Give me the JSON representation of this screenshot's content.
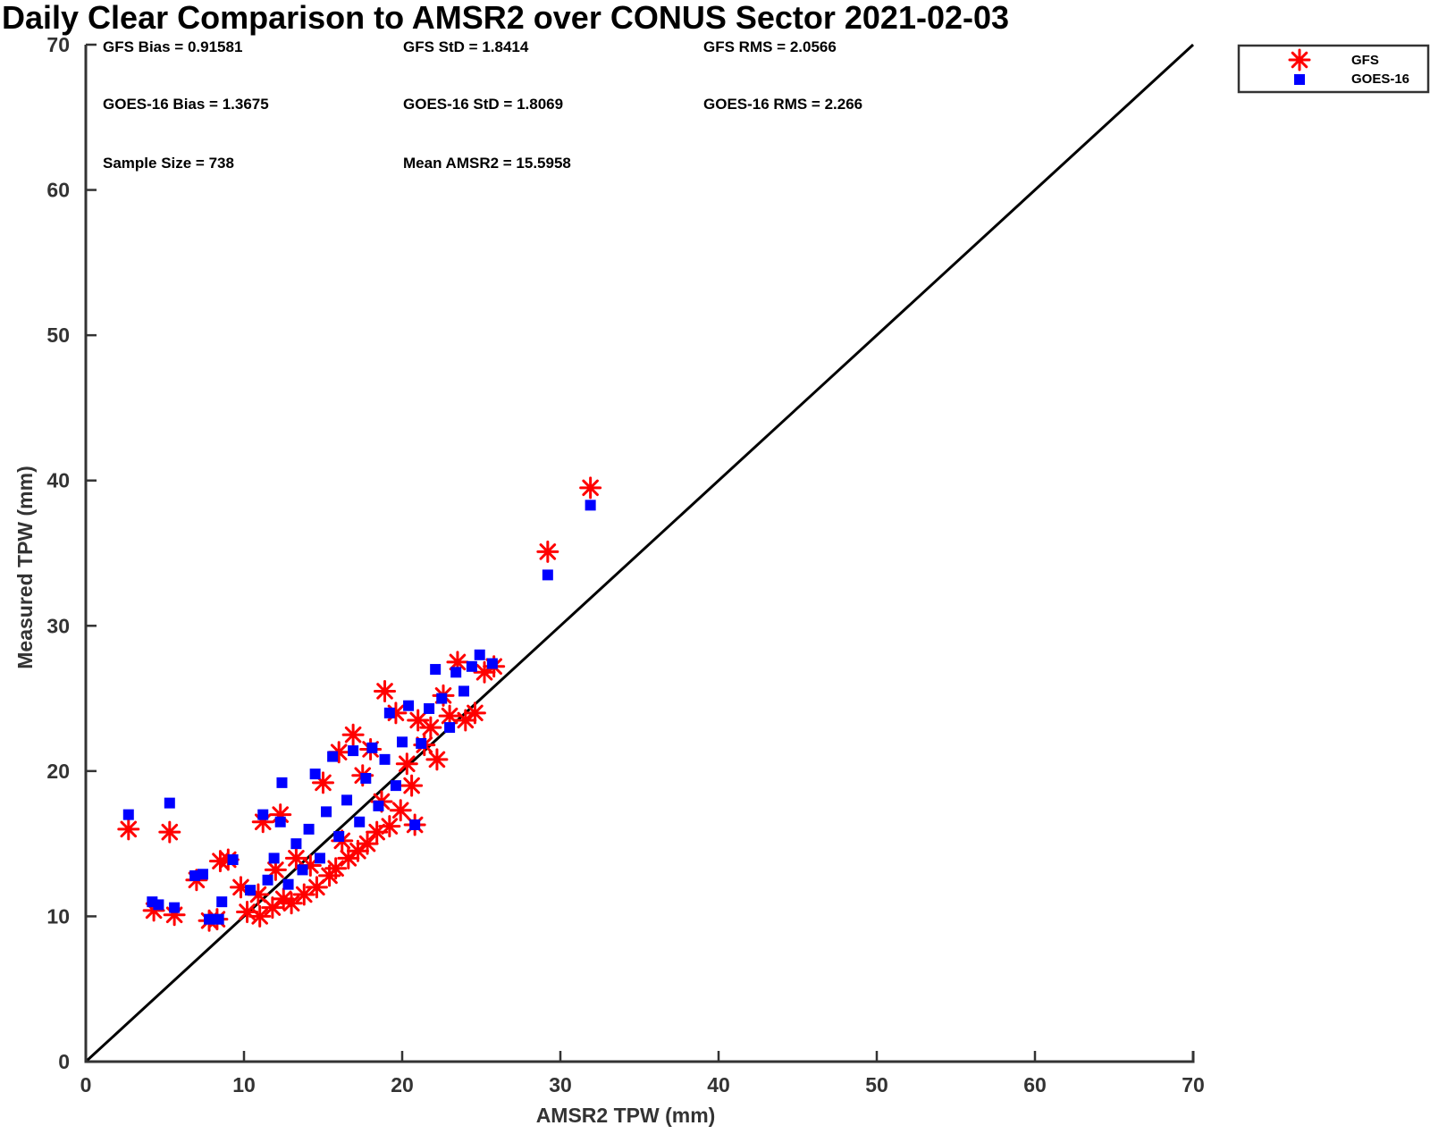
{
  "chart_data": {
    "type": "scatter",
    "title": "Daily Clear Comparison to AMSR2 over CONUS Sector 2021-02-03",
    "xlabel": "AMSR2 TPW (mm)",
    "ylabel": "Measured TPW (mm)",
    "xlim": [
      0,
      70
    ],
    "ylim": [
      0,
      70
    ],
    "xticks": [
      "0",
      "10",
      "20",
      "30",
      "40",
      "50",
      "60",
      "70"
    ],
    "yticks": [
      "0",
      "10",
      "20",
      "30",
      "40",
      "50",
      "60",
      "70"
    ],
    "grid": false,
    "legend_position": "outside-top-right",
    "reference_line": {
      "from": [
        0,
        0
      ],
      "to": [
        70,
        70
      ],
      "color": "#000000"
    },
    "stats": {
      "gfs_bias": "GFS Bias = 0.91581",
      "gfs_std": "GFS StD = 1.8414",
      "gfs_rms": "GFS RMS = 2.0566",
      "goes_bias": "GOES-16 Bias = 1.3675",
      "goes_std": "GOES-16 StD = 1.8069",
      "goes_rms": "GOES-16 RMS = 2.266",
      "sample_size": "Sample Size = 738",
      "mean_amsr2": "Mean AMSR2 = 15.5958"
    },
    "series": [
      {
        "name": "GFS",
        "marker": "asterisk",
        "color": "#ff0000",
        "points": [
          [
            2.7,
            16.0
          ],
          [
            5.3,
            15.8
          ],
          [
            4.3,
            10.4
          ],
          [
            5.6,
            10.1
          ],
          [
            7.0,
            12.5
          ],
          [
            7.8,
            9.7
          ],
          [
            8.3,
            9.8
          ],
          [
            8.5,
            13.8
          ],
          [
            9.0,
            13.9
          ],
          [
            9.8,
            12.0
          ],
          [
            10.2,
            10.3
          ],
          [
            11.0,
            10.0
          ],
          [
            11.2,
            16.5
          ],
          [
            10.9,
            11.5
          ],
          [
            11.8,
            10.6
          ],
          [
            12.0,
            13.2
          ],
          [
            12.3,
            17.0
          ],
          [
            12.5,
            11.2
          ],
          [
            13.0,
            10.9
          ],
          [
            13.3,
            14.0
          ],
          [
            13.8,
            11.5
          ],
          [
            14.2,
            13.5
          ],
          [
            14.6,
            12.0
          ],
          [
            15.0,
            19.2
          ],
          [
            15.4,
            12.8
          ],
          [
            15.8,
            13.3
          ],
          [
            16.0,
            21.3
          ],
          [
            16.2,
            15.2
          ],
          [
            16.6,
            14.0
          ],
          [
            16.9,
            22.5
          ],
          [
            17.2,
            14.5
          ],
          [
            17.5,
            19.7
          ],
          [
            17.8,
            15.0
          ],
          [
            18.0,
            21.5
          ],
          [
            18.4,
            15.8
          ],
          [
            18.7,
            17.9
          ],
          [
            18.9,
            25.5
          ],
          [
            19.2,
            16.2
          ],
          [
            19.6,
            24.0
          ],
          [
            19.9,
            17.3
          ],
          [
            20.3,
            20.5
          ],
          [
            20.6,
            19.0
          ],
          [
            20.8,
            16.3
          ],
          [
            21.0,
            23.5
          ],
          [
            21.4,
            21.8
          ],
          [
            21.8,
            23.0
          ],
          [
            22.2,
            20.8
          ],
          [
            22.6,
            25.2
          ],
          [
            23.0,
            23.8
          ],
          [
            23.5,
            27.5
          ],
          [
            24.0,
            23.5
          ],
          [
            24.6,
            24.0
          ],
          [
            25.2,
            26.8
          ],
          [
            25.8,
            27.2
          ],
          [
            29.2,
            35.1
          ],
          [
            31.9,
            39.5
          ]
        ]
      },
      {
        "name": "GOES-16",
        "marker": "square",
        "color": "#0000ff",
        "points": [
          [
            2.7,
            17.0
          ],
          [
            5.3,
            17.8
          ],
          [
            4.2,
            11.0
          ],
          [
            4.6,
            10.8
          ],
          [
            5.6,
            10.6
          ],
          [
            6.9,
            12.8
          ],
          [
            7.4,
            12.9
          ],
          [
            7.8,
            9.8
          ],
          [
            8.4,
            9.8
          ],
          [
            8.6,
            11.0
          ],
          [
            9.3,
            13.9
          ],
          [
            10.4,
            11.8
          ],
          [
            11.2,
            17.0
          ],
          [
            11.5,
            12.5
          ],
          [
            11.9,
            14.0
          ],
          [
            12.3,
            16.5
          ],
          [
            12.4,
            19.2
          ],
          [
            12.8,
            12.2
          ],
          [
            13.3,
            15.0
          ],
          [
            13.7,
            13.2
          ],
          [
            14.1,
            16.0
          ],
          [
            14.5,
            19.8
          ],
          [
            14.8,
            14.0
          ],
          [
            15.2,
            17.2
          ],
          [
            15.6,
            21.0
          ],
          [
            16.0,
            15.5
          ],
          [
            16.5,
            18.0
          ],
          [
            16.9,
            21.4
          ],
          [
            17.3,
            16.5
          ],
          [
            17.7,
            19.5
          ],
          [
            18.1,
            21.6
          ],
          [
            18.5,
            17.6
          ],
          [
            18.9,
            20.8
          ],
          [
            19.2,
            24.0
          ],
          [
            19.6,
            19.0
          ],
          [
            20.0,
            22.0
          ],
          [
            20.4,
            24.5
          ],
          [
            20.8,
            16.3
          ],
          [
            21.2,
            21.9
          ],
          [
            21.7,
            24.3
          ],
          [
            22.1,
            27.0
          ],
          [
            22.5,
            25.0
          ],
          [
            23.0,
            23.0
          ],
          [
            23.4,
            26.8
          ],
          [
            23.9,
            25.5
          ],
          [
            24.4,
            27.2
          ],
          [
            24.9,
            28.0
          ],
          [
            25.7,
            27.4
          ],
          [
            29.2,
            33.5
          ],
          [
            31.9,
            38.3
          ]
        ]
      }
    ]
  }
}
